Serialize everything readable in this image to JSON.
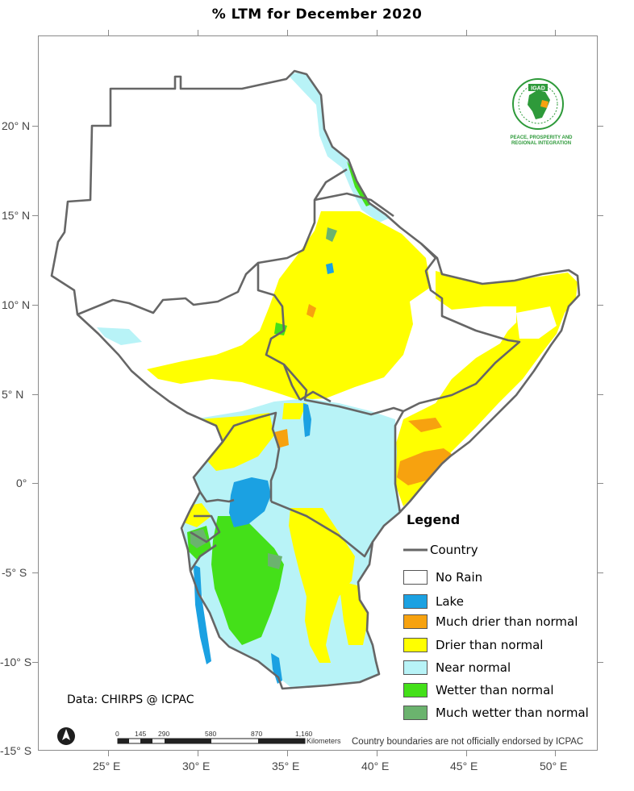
{
  "title": "% LTM  for  December 2020",
  "axes": {
    "lat": [
      "20° N",
      "15° N",
      "10° N",
      "5° N",
      "0°",
      "-5° S",
      "-10° S",
      "-15° S"
    ],
    "lon": [
      "25° E",
      "30° E",
      "35° E",
      "40° E",
      "45° E",
      "50° E"
    ]
  },
  "legend": {
    "title": "Legend",
    "country_label": "Country",
    "items": [
      {
        "label": "No Rain",
        "color": "#ffffff"
      },
      {
        "label": "Lake",
        "color": "#1ba1e2"
      },
      {
        "label": "Much drier than normal",
        "color": "#f7a20f"
      },
      {
        "label": "Drier than normal",
        "color": "#ffff00"
      },
      {
        "label": "Near normal",
        "color": "#b8f3f7"
      },
      {
        "label": "Wetter than normal",
        "color": "#44e019"
      },
      {
        "label": "Much wetter than normal",
        "color": "#6bb36e"
      }
    ]
  },
  "data_credit": "Data: CHIRPS @ ICPAC",
  "disclaimer": "Country boundaries are not officially endorsed by ICPAC",
  "scale": {
    "labels": [
      "0",
      "145",
      "290",
      "580",
      "870",
      "1,160"
    ],
    "unit": "Kilometers"
  },
  "logo": {
    "name": "IGAD",
    "tagline": "PEACE, PROSPERITY AND REGIONAL INTEGRATION"
  },
  "colors": {
    "border": "#666666",
    "no_rain": "#ffffff",
    "lake": "#1ba1e2",
    "much_drier": "#f7a20f",
    "drier": "#ffff00",
    "near_normal": "#b8f3f7",
    "wetter": "#44e019",
    "much_wetter": "#6bb36e"
  }
}
